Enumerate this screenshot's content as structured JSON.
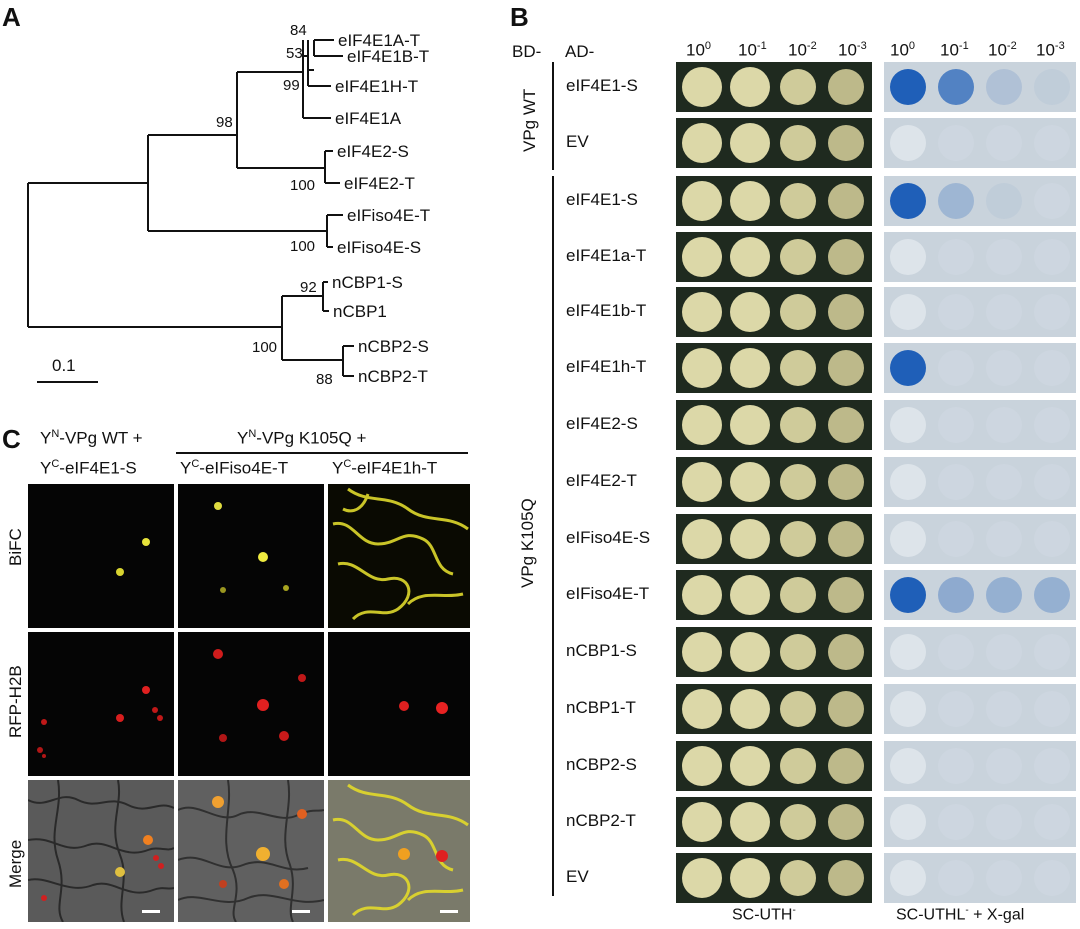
{
  "panels": {
    "a": "A",
    "b": "B",
    "c": "C"
  },
  "tree": {
    "leaves": [
      "eIF4E1A-T",
      "eIF4E1B-T",
      "eIF4E1H-T",
      "eIF4E1A",
      "eIF4E2-S",
      "eIF4E2-T",
      "eIFiso4E-T",
      "eIFiso4E-S",
      "nCBP1-S",
      "nCBP1",
      "nCBP2-S",
      "nCBP2-T"
    ],
    "bootstraps": [
      "84",
      "53",
      "99",
      "98",
      "100",
      "100",
      "92",
      "100",
      "88"
    ],
    "scale_label": "0.1"
  },
  "y2h": {
    "bd_header": "BD-",
    "ad_header": "AD-",
    "dilution_base": "10",
    "dilution_exponents": [
      "0",
      "-1",
      "-2",
      "-3"
    ],
    "groups": {
      "wt": "VPg WT",
      "mut": "VPg K105Q"
    },
    "rows": [
      "eIF4E1-S",
      "EV",
      "eIF4E1-S",
      "eIF4E1a-T",
      "eIF4E1b-T",
      "eIF4E1h-T",
      "eIF4E2-S",
      "eIF4E2-T",
      "eIFiso4E-S",
      "eIFiso4E-T",
      "nCBP1-S",
      "nCBP1-T",
      "nCBP2-S",
      "nCBP2-T",
      "EV"
    ],
    "media": {
      "left": "SC-UTH",
      "left_sup": "-",
      "right_a": "SC-UTHL",
      "right_sup": "-",
      "right_b": " + X-gal"
    },
    "colors": {
      "yeast": "#dcd8a8",
      "plate_dark": "#1f2a1f",
      "plate_light": "#c9d3dc",
      "blue": "#1f5fb8"
    }
  },
  "bifc": {
    "col1_line1_a": "Y",
    "col1_line1_sup": "N",
    "col1_line1_b": "-VPg WT +",
    "col1_line2_a": "Y",
    "col1_line2_sup": "C",
    "col1_line2_b": "-eIF4E1-S",
    "col23_header_a": "Y",
    "col23_header_sup": "N",
    "col23_header_b": "-VPg K105Q +",
    "col2_a": "Y",
    "col2_sup": "C",
    "col2_b": "-eIFiso4E-T",
    "col3_a": "Y",
    "col3_sup": "C",
    "col3_b": "-eIF4E1h-T",
    "row_labels": [
      "BiFC",
      "RFP-H2B",
      "Merge"
    ]
  }
}
